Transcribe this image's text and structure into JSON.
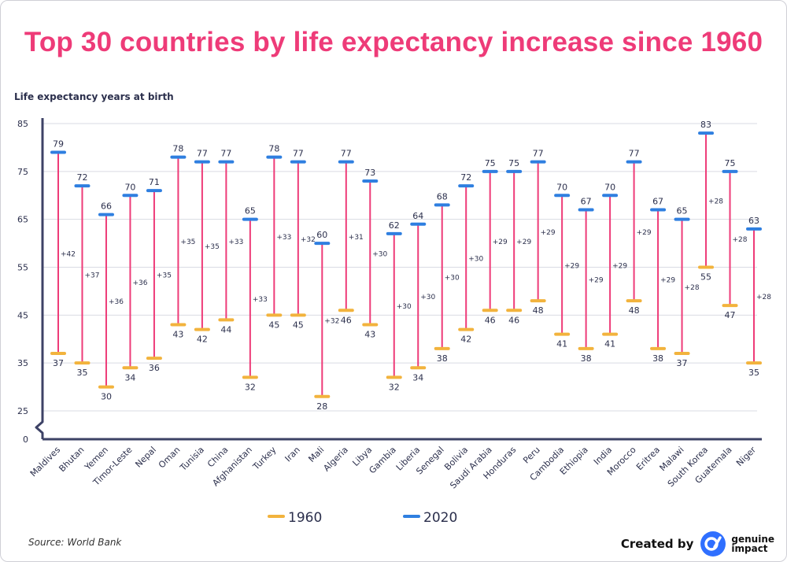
{
  "title": "Top 30 countries by life expectancy increase since 1960",
  "source": "Source: World Bank",
  "credit": {
    "created_by": "Created by",
    "brand_line1": "genuine",
    "brand_line2": "impact"
  },
  "colors": {
    "title": "#ee3b78",
    "stem": "#ee3b78",
    "y1960": "#f2b33d",
    "y2020": "#2f7fe0",
    "axis": "#3d4266",
    "grid": "#d9dbe3"
  },
  "chart_data": {
    "type": "dumbbell",
    "ylabel": "Life expectancy years at birth",
    "yticks": [
      0,
      25,
      35,
      45,
      55,
      65,
      75,
      85
    ],
    "axis_break": true,
    "ylim": [
      25,
      85
    ],
    "grid": true,
    "legend": {
      "position": "bottom-center",
      "entries": [
        "1960",
        "2020"
      ]
    },
    "categories": [
      "Maldives",
      "Bhutan",
      "Yemen",
      "Timor-Leste",
      "Nepal",
      "Oman",
      "Tunisia",
      "China",
      "Afghanistan",
      "Turkey",
      "Iran",
      "Mali",
      "Algeria",
      "Libya",
      "Gambia",
      "Liberia",
      "Senegal",
      "Bolivia",
      "Saudi Arabia",
      "Honduras",
      "Peru",
      "Cambodia",
      "Ethiopia",
      "India",
      "Morocco",
      "Eritrea",
      "Malawi",
      "South Korea",
      "Guatemala",
      "Niger"
    ],
    "series": [
      {
        "name": "1960",
        "values": [
          37,
          35,
          30,
          34,
          36,
          43,
          42,
          44,
          32,
          45,
          45,
          28,
          46,
          43,
          32,
          34,
          38,
          42,
          46,
          46,
          48,
          41,
          38,
          41,
          48,
          38,
          37,
          55,
          47,
          35
        ]
      },
      {
        "name": "2020",
        "values": [
          79,
          72,
          66,
          70,
          71,
          78,
          77,
          77,
          65,
          78,
          77,
          60,
          77,
          73,
          62,
          64,
          68,
          72,
          75,
          75,
          77,
          70,
          67,
          70,
          77,
          67,
          65,
          83,
          75,
          63
        ]
      }
    ],
    "increase": [
      42,
      37,
      36,
      36,
      35,
      35,
      35,
      33,
      33,
      33,
      32,
      32,
      31,
      30,
      30,
      30,
      30,
      30,
      29,
      29,
      29,
      29,
      29,
      29,
      29,
      29,
      28,
      28,
      28,
      28
    ],
    "increase_labels": [
      "+42",
      "+37",
      "+36",
      "+36",
      "+35",
      "+35",
      "+35",
      "+33",
      "+33",
      "+33",
      "+32",
      "+32",
      "+31",
      "+30",
      "+30",
      "+30",
      "+30",
      "+30",
      "+29",
      "+29",
      "+29",
      "+29",
      "+29",
      "+29",
      "+29",
      "+29",
      "+28",
      "+28",
      "+28",
      "+28"
    ]
  }
}
